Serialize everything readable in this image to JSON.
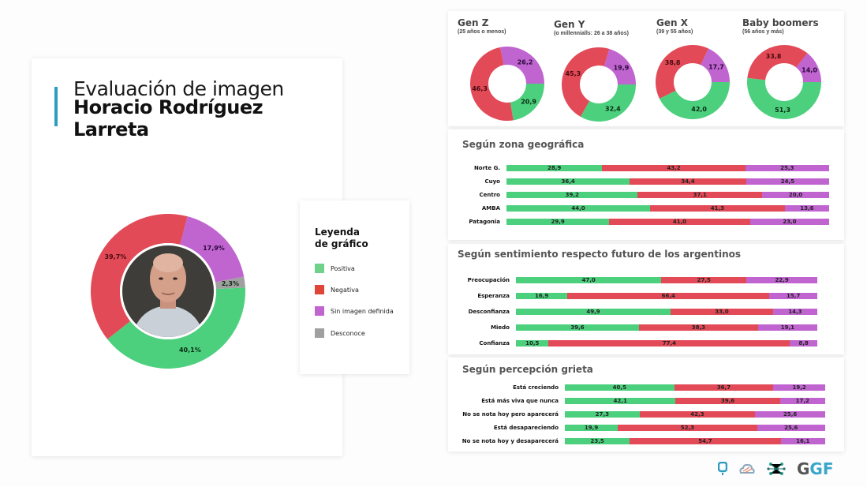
{
  "colors": {
    "positiva": "#4cd07d",
    "negativa": "#e24a57",
    "sin_imagen": "#c064d0",
    "desconoce": "#a0a0a0",
    "accent": "#2e9ec0"
  },
  "header": {
    "line1": "Evaluación de imagen",
    "line2": "Horacio Rodríguez Larreta"
  },
  "legend": {
    "title_line1": "Leyenda",
    "title_line2": "de gráfico",
    "items": [
      {
        "label": "Positiva",
        "color": "#6fd18a"
      },
      {
        "label": "Negativa",
        "color": "#e0453a"
      },
      {
        "label": "Sin imagen definida",
        "color": "#c064d0"
      },
      {
        "label": "Desconoce",
        "color": "#a0a0a0"
      }
    ]
  },
  "generations": [
    {
      "title": "Gen Z",
      "subtitle": "(25 años o menos)"
    },
    {
      "title": "Gen Y",
      "subtitle": "(o millennialls: 26 a 38 años)"
    },
    {
      "title": "Gen X",
      "subtitle": "(39 y 55 años)"
    },
    {
      "title": "Baby boomers",
      "subtitle": "(56 años y más)"
    }
  ],
  "sections": {
    "zona": {
      "title": "Según zona geográfica"
    },
    "sentimiento": {
      "title": "Según sentimiento respecto futuro de los argentinos"
    },
    "grieta": {
      "title": "Según percepción grieta"
    }
  },
  "logos": {
    "ggf_g": "G",
    "ggf_gf": "GF"
  },
  "chart_data": [
    {
      "type": "pie",
      "title": "Evaluación de imagen Horacio Rodríguez Larreta",
      "donut": true,
      "categories": [
        "Positiva",
        "Negativa",
        "Sin imagen definida",
        "Desconoce"
      ],
      "values": [
        40.1,
        39.7,
        17.9,
        2.3
      ],
      "labels": [
        "40,1%",
        "39,7%",
        "17,9%",
        "2,3%"
      ]
    },
    {
      "type": "pie",
      "title": "Gen Z",
      "subtitle": "(25 años o menos)",
      "donut": true,
      "categories": [
        "Positiva",
        "Negativa",
        "Sin imagen definida"
      ],
      "values": [
        20.9,
        46.3,
        26.2
      ],
      "labels": [
        "20,9",
        "46,3",
        "26,2"
      ]
    },
    {
      "type": "pie",
      "title": "Gen Y",
      "subtitle": "(o millennialls: 26 a 38 años)",
      "donut": true,
      "categories": [
        "Positiva",
        "Negativa",
        "Sin imagen definida"
      ],
      "values": [
        32.4,
        45.3,
        19.9
      ],
      "labels": [
        "32,4",
        "45,3",
        "19,9"
      ]
    },
    {
      "type": "pie",
      "title": "Gen X",
      "subtitle": "(39 y 55 años)",
      "donut": true,
      "categories": [
        "Positiva",
        "Negativa",
        "Sin imagen definida"
      ],
      "values": [
        42.0,
        38.8,
        17.7
      ],
      "labels": [
        "42,0",
        "38,8",
        "17,7"
      ]
    },
    {
      "type": "pie",
      "title": "Baby boomers",
      "subtitle": "(56 años y más)",
      "donut": true,
      "categories": [
        "Positiva",
        "Negativa",
        "Sin imagen definida"
      ],
      "values": [
        51.3,
        33.8,
        14.0
      ],
      "labels": [
        "51,3",
        "33,8",
        "14,0"
      ]
    },
    {
      "type": "bar",
      "orientation": "horizontal",
      "stacked": true,
      "title": "Según zona geográfica",
      "categories": [
        "Norte G.",
        "Cuyo",
        "Centro",
        "AMBA",
        "Patagonia"
      ],
      "series": [
        {
          "name": "Positiva",
          "values": [
            28.9,
            36.4,
            39.2,
            44.0,
            29.9
          ],
          "labels": [
            "28,9",
            "36,4",
            "39,2",
            "44,0",
            "29,9"
          ]
        },
        {
          "name": "Negativa",
          "values": [
            43.2,
            34.4,
            37.1,
            41.3,
            41.0
          ],
          "labels": [
            "43,2",
            "34,4",
            "37,1",
            "41,3",
            "41,0"
          ]
        },
        {
          "name": "Sin imagen definida",
          "values": [
            25.3,
            24.5,
            20.0,
            13.6,
            23.0
          ],
          "labels": [
            "25,3",
            "24,5",
            "20,0",
            "13,6",
            "23,0"
          ]
        }
      ]
    },
    {
      "type": "bar",
      "orientation": "horizontal",
      "stacked": true,
      "title": "Según sentimiento respecto futuro de los argentinos",
      "categories": [
        "Preocupación",
        "Esperanza",
        "Desconfianza",
        "Miedo",
        "Confianza"
      ],
      "series": [
        {
          "name": "Positiva",
          "values": [
            47.0,
            16.9,
            49.9,
            39.6,
            10.5
          ],
          "labels": [
            "47,0",
            "16,9",
            "49,9",
            "39,6",
            "10,5"
          ]
        },
        {
          "name": "Negativa",
          "values": [
            27.5,
            66.4,
            33.0,
            38.3,
            77.4
          ],
          "labels": [
            "27,5",
            "66,4",
            "33,0",
            "38,3",
            "77,4"
          ]
        },
        {
          "name": "Sin imagen definida",
          "values": [
            22.9,
            15.7,
            14.3,
            19.1,
            8.8
          ],
          "labels": [
            "22,9",
            "15,7",
            "14,3",
            "19,1",
            "8,8"
          ]
        }
      ]
    },
    {
      "type": "bar",
      "orientation": "horizontal",
      "stacked": true,
      "title": "Según percepción grieta",
      "categories": [
        "Está creciendo",
        "Está más viva que nunca",
        "No se nota hoy pero aparecerá",
        "Está desapareciendo",
        "No se nota hoy y desaparecerá"
      ],
      "series": [
        {
          "name": "Positiva",
          "values": [
            40.5,
            42.1,
            27.3,
            19.9,
            23.5
          ],
          "labels": [
            "40,5",
            "42,1",
            "27,3",
            "19,9",
            "23,5"
          ]
        },
        {
          "name": "Negativa",
          "values": [
            36.7,
            39.6,
            42.3,
            52.3,
            54.7
          ],
          "labels": [
            "36,7",
            "39,6",
            "42,3",
            "52,3",
            "54,7"
          ]
        },
        {
          "name": "Sin imagen definida",
          "values": [
            19.2,
            17.2,
            25.6,
            25.6,
            16.1
          ],
          "labels": [
            "19,2",
            "17,2",
            "25,6",
            "25,6",
            "16,1"
          ]
        }
      ]
    }
  ]
}
